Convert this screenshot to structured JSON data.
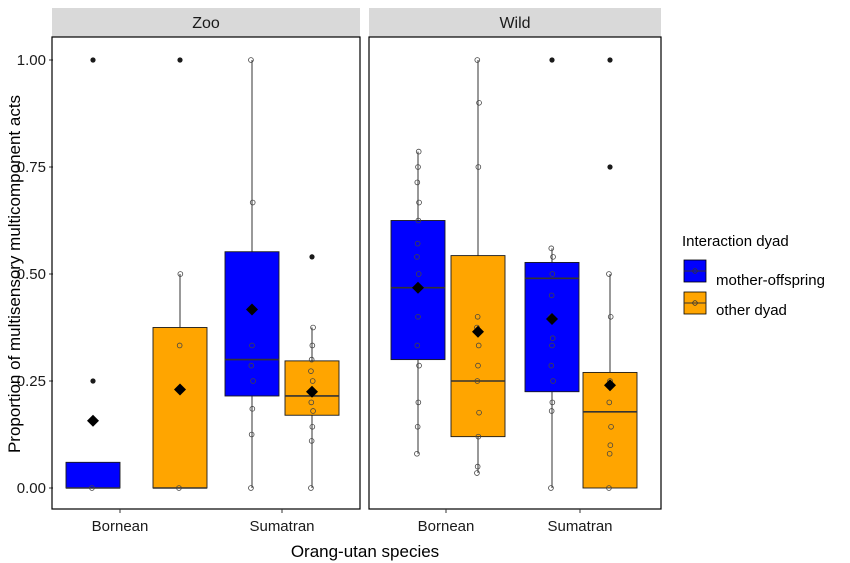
{
  "chart_data": {
    "type": "box",
    "ylabel": "Proportion of multisensory multicomponent acts",
    "xlabel": "Orang-utan species",
    "ylim": [
      0,
      1
    ],
    "yticks": [
      "0.00",
      "0.25",
      "0.50",
      "0.75",
      "1.00"
    ],
    "grid": false,
    "legend_position": "right",
    "legend": {
      "title": "Interaction dyad",
      "items": [
        {
          "label": "mother-offspring",
          "color": "#0000FF"
        },
        {
          "label": "other dyad",
          "color": "#FFA500"
        }
      ]
    },
    "panels": [
      {
        "label": "Zoo",
        "categories": [
          "Bornean",
          "Sumatran"
        ],
        "boxes": [
          {
            "species": "Bornean",
            "dyad": "mother-offspring",
            "q1": 0.0,
            "median": 0.0,
            "q3": 0.06,
            "whisker_low": 0.0,
            "whisker_high": 0.06,
            "mean": 0.157,
            "outliers": [
              0.25,
              1.0
            ],
            "points": [
              0.0
            ]
          },
          {
            "species": "Bornean",
            "dyad": "other dyad",
            "q1": 0.0,
            "median": 0.0,
            "q3": 0.375,
            "whisker_low": 0.0,
            "whisker_high": 0.5,
            "mean": 0.23,
            "outliers": [
              1.0
            ],
            "points": [
              0.0,
              0.333,
              0.5
            ]
          },
          {
            "species": "Sumatran",
            "dyad": "mother-offspring",
            "q1": 0.215,
            "median": 0.3,
            "q3": 0.552,
            "whisker_low": 0.0,
            "whisker_high": 1.0,
            "mean": 0.417,
            "outliers": [],
            "points": [
              0.0,
              0.125,
              0.185,
              0.25,
              0.286,
              0.333,
              0.667,
              1.0
            ]
          },
          {
            "species": "Sumatran",
            "dyad": "other dyad",
            "q1": 0.17,
            "median": 0.215,
            "q3": 0.297,
            "whisker_low": 0.0,
            "whisker_high": 0.375,
            "mean": 0.225,
            "outliers": [
              0.54
            ],
            "points": [
              0.0,
              0.11,
              0.143,
              0.18,
              0.2,
              0.222,
              0.25,
              0.273,
              0.3,
              0.333,
              0.375
            ]
          }
        ]
      },
      {
        "label": "Wild",
        "categories": [
          "Bornean",
          "Sumatran"
        ],
        "boxes": [
          {
            "species": "Bornean",
            "dyad": "mother-offspring",
            "q1": 0.3,
            "median": 0.468,
            "q3": 0.625,
            "whisker_low": 0.08,
            "whisker_high": 0.786,
            "mean": 0.468,
            "outliers": [],
            "points": [
              0.08,
              0.143,
              0.2,
              0.286,
              0.333,
              0.4,
              0.5,
              0.54,
              0.571,
              0.625,
              0.667,
              0.714,
              0.75,
              0.786
            ]
          },
          {
            "species": "Bornean",
            "dyad": "other dyad",
            "q1": 0.12,
            "median": 0.25,
            "q3": 0.543,
            "whisker_low": 0.035,
            "whisker_high": 1.0,
            "mean": 0.365,
            "outliers": [],
            "points": [
              0.035,
              0.05,
              0.12,
              0.176,
              0.25,
              0.286,
              0.333,
              0.375,
              0.4,
              0.75,
              0.9,
              1.0
            ]
          },
          {
            "species": "Sumatran",
            "dyad": "mother-offspring",
            "q1": 0.225,
            "median": 0.49,
            "q3": 0.527,
            "whisker_low": 0.0,
            "whisker_high": 0.56,
            "mean": 0.395,
            "outliers": [
              1.0
            ],
            "points": [
              0.0,
              0.18,
              0.2,
              0.25,
              0.286,
              0.333,
              0.35,
              0.4,
              0.45,
              0.5,
              0.54,
              0.56
            ]
          },
          {
            "species": "Sumatran",
            "dyad": "other dyad",
            "q1": 0.0,
            "median": 0.178,
            "q3": 0.27,
            "whisker_low": 0.0,
            "whisker_high": 0.5,
            "mean": 0.24,
            "outliers": [
              0.75,
              1.0
            ],
            "points": [
              0.0,
              0.08,
              0.1,
              0.143,
              0.2,
              0.25,
              0.4,
              0.5
            ]
          }
        ]
      }
    ]
  }
}
